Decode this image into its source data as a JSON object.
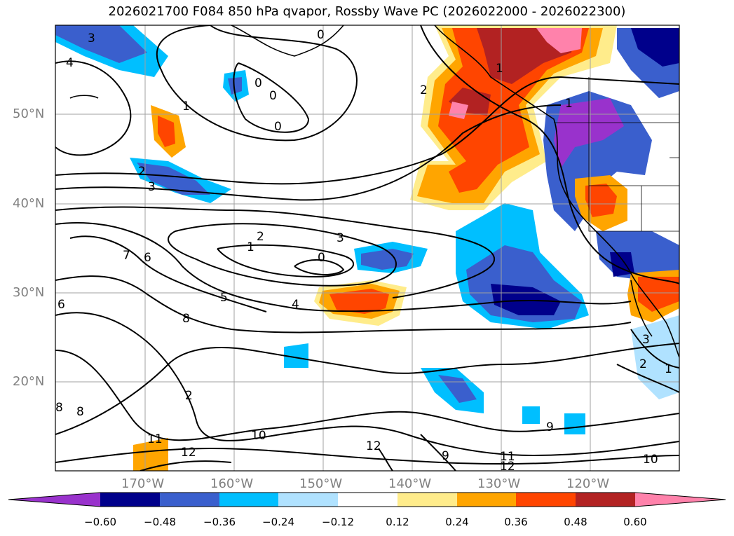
{
  "title": "2026021700 F084 850 hPa qvapor, Rossby Wave PC (2026022000 - 2026022300)",
  "map": {
    "lat_labels": [
      "50°N",
      "40°N",
      "30°N",
      "20°N"
    ],
    "lon_labels": [
      "170°W",
      "160°W",
      "150°W",
      "140°W",
      "130°W",
      "120°W"
    ],
    "contour_labels": [
      "3",
      "4",
      "0",
      "0",
      "0",
      "0",
      "1",
      "2",
      "3",
      "2",
      "1",
      "2",
      "3",
      "0",
      "7",
      "6",
      "5",
      "4",
      "8",
      "6",
      "1",
      "2",
      "11",
      "12",
      "10",
      "12",
      "9",
      "11",
      "12",
      "10",
      "9",
      "8",
      "8",
      "1",
      "3",
      "2",
      "1"
    ]
  },
  "colorbar": {
    "ticks": [
      "−0.60",
      "−0.48",
      "−0.36",
      "−0.24",
      "−0.12",
      "0.12",
      "0.24",
      "0.36",
      "0.48",
      "0.60"
    ],
    "colors": [
      "#9932cc",
      "#00008b",
      "#3a5fcd",
      "#00bfff",
      "#b0e2ff",
      "#ffffff",
      "#ffec8b",
      "#ffa500",
      "#ff4500",
      "#b22222",
      "#ff82ab"
    ]
  }
}
